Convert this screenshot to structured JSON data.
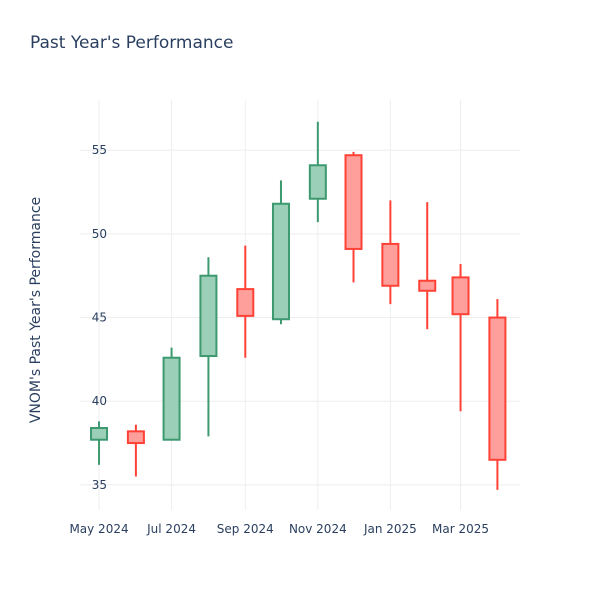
{
  "chart_data": {
    "type": "candlestick",
    "title": "Past Year's Performance",
    "ylabel": "VNOM's Past Year's Performance",
    "xlabel": "",
    "ylim": [
      33.5,
      58
    ],
    "y_ticks": [
      35,
      40,
      45,
      50,
      55
    ],
    "x_ticks": [
      {
        "label": "May 2024",
        "date": "2024-05-01"
      },
      {
        "label": "Jul 2024",
        "date": "2024-07-01"
      },
      {
        "label": "Sep 2024",
        "date": "2024-09-01"
      },
      {
        "label": "Nov 2024",
        "date": "2024-11-01"
      },
      {
        "label": "Jan 2025",
        "date": "2025-01-01"
      },
      {
        "label": "Mar 2025",
        "date": "2025-03-01"
      }
    ],
    "grid": true,
    "colors": {
      "increasing_line": "#3d9970",
      "increasing_fill": "#9ccfb7",
      "decreasing_line": "#ff4136",
      "decreasing_fill": "#ff9f9b",
      "grid": "#eeeeee",
      "text": "#2a3f5f"
    },
    "candles": [
      {
        "date": "2024-05-01",
        "open": 37.7,
        "high": 38.8,
        "low": 36.2,
        "close": 38.4
      },
      {
        "date": "2024-06-01",
        "open": 38.2,
        "high": 38.6,
        "low": 35.5,
        "close": 37.5
      },
      {
        "date": "2024-07-01",
        "open": 37.7,
        "high": 43.2,
        "low": 37.7,
        "close": 42.6
      },
      {
        "date": "2024-08-01",
        "open": 42.7,
        "high": 48.6,
        "low": 37.9,
        "close": 47.5
      },
      {
        "date": "2024-09-01",
        "open": 46.7,
        "high": 49.3,
        "low": 42.6,
        "close": 45.1
      },
      {
        "date": "2024-10-01",
        "open": 44.9,
        "high": 53.2,
        "low": 44.6,
        "close": 51.8
      },
      {
        "date": "2024-11-01",
        "open": 52.1,
        "high": 56.7,
        "low": 50.7,
        "close": 54.1
      },
      {
        "date": "2024-12-01",
        "open": 54.7,
        "high": 54.9,
        "low": 47.1,
        "close": 49.1
      },
      {
        "date": "2025-01-01",
        "open": 49.4,
        "high": 52.0,
        "low": 45.8,
        "close": 46.9
      },
      {
        "date": "2025-02-01",
        "open": 47.2,
        "high": 51.9,
        "low": 44.3,
        "close": 46.6
      },
      {
        "date": "2025-03-01",
        "open": 47.4,
        "high": 48.2,
        "low": 39.4,
        "close": 45.2
      },
      {
        "date": "2025-04-01",
        "open": 45.0,
        "high": 46.1,
        "low": 34.7,
        "close": 36.5
      }
    ]
  }
}
